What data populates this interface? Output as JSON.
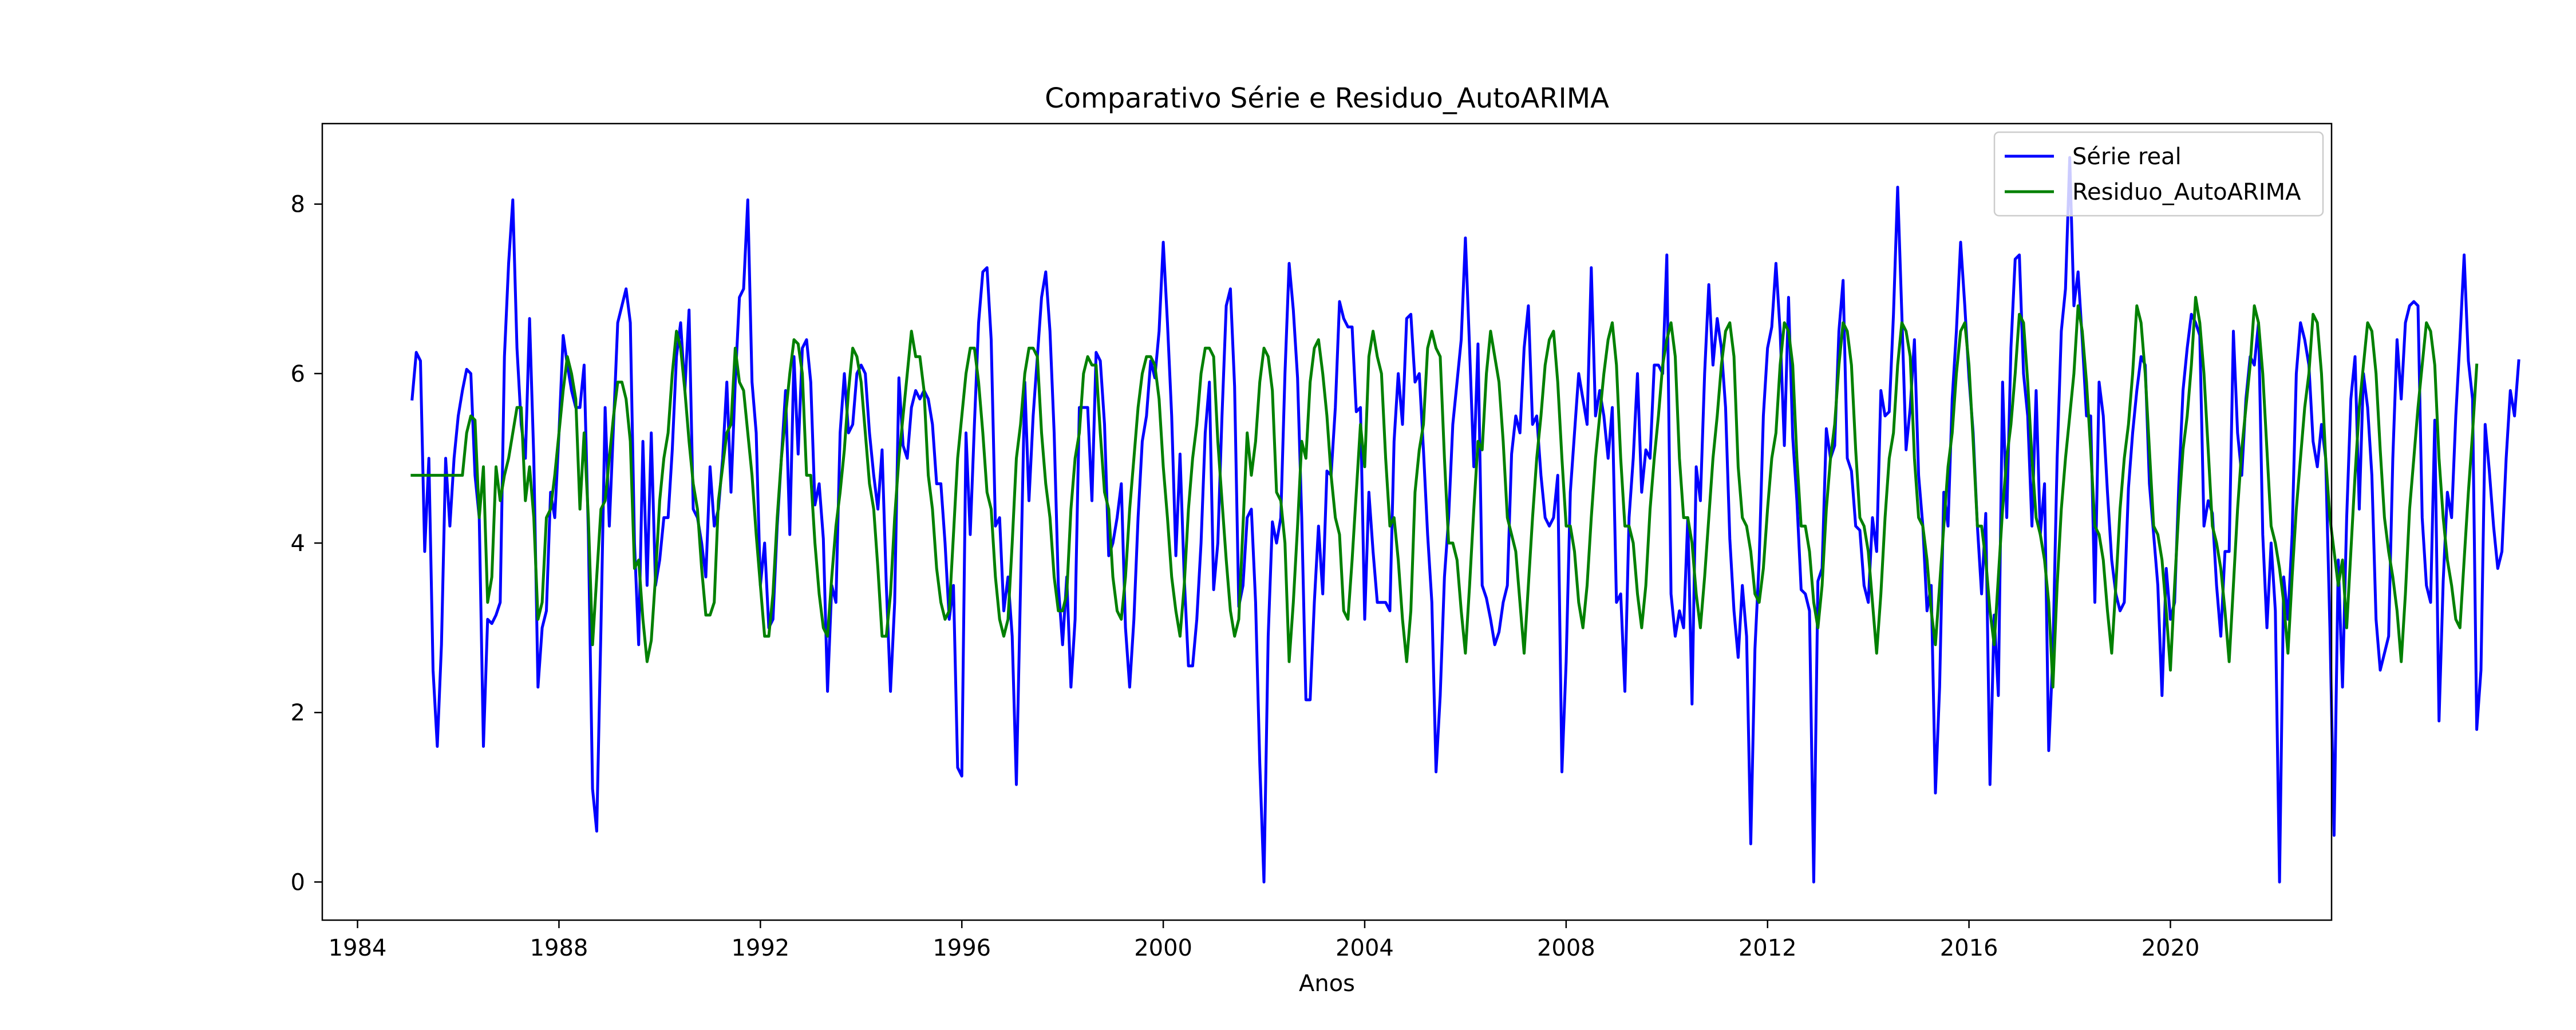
{
  "chart_data": {
    "type": "line",
    "title": "Comparativo Série e Residuo_AutoARIMA",
    "xlabel": "Anos",
    "ylabel": "",
    "x_start": 1985.0833,
    "x_step": 0.0833333,
    "xlim": [
      1983.3,
      2023.2
    ],
    "ylim": [
      -0.45,
      8.95
    ],
    "xticks": [
      1984,
      1988,
      1992,
      1996,
      2000,
      2004,
      2008,
      2012,
      2016,
      2020
    ],
    "yticks": [
      0,
      2,
      4,
      6,
      8
    ],
    "grid": false,
    "legend_position": "top-right",
    "series": [
      {
        "name": "Série real",
        "color": "#0000ff",
        "values": [
          5.7,
          6.25,
          6.15,
          3.9,
          5.0,
          2.5,
          1.6,
          2.8,
          5.0,
          4.2,
          5.0,
          5.5,
          5.8,
          6.05,
          6.0,
          4.8,
          4.3,
          1.6,
          3.1,
          3.05,
          3.15,
          3.3,
          6.2,
          7.3,
          8.05,
          6.3,
          5.4,
          5.0,
          6.65,
          5.0,
          2.3,
          3.0,
          3.2,
          4.6,
          4.3,
          5.3,
          6.45,
          6.1,
          5.8,
          5.6,
          5.6,
          6.1,
          4.1,
          1.1,
          0.6,
          3.0,
          5.6,
          4.2,
          5.4,
          6.6,
          6.8,
          7.0,
          6.6,
          4.0,
          2.8,
          5.2,
          3.5,
          5.3,
          3.5,
          3.8,
          4.3,
          4.3,
          5.1,
          6.2,
          6.6,
          5.8,
          6.75,
          4.4,
          4.3,
          4.0,
          3.6,
          4.9,
          4.2,
          4.4,
          5.0,
          5.9,
          4.6,
          5.9,
          6.9,
          7.0,
          8.05,
          5.9,
          5.3,
          3.5,
          4.0,
          3.0,
          3.1,
          4.2,
          5.0,
          5.8,
          4.1,
          6.2,
          5.05,
          6.3,
          6.4,
          5.9,
          4.45,
          4.7,
          4.05,
          2.25,
          3.5,
          3.3,
          5.3,
          6.0,
          5.3,
          5.4,
          6.0,
          6.1,
          6.0,
          5.3,
          4.8,
          4.4,
          5.1,
          3.5,
          2.25,
          3.3,
          5.95,
          5.15,
          5.0,
          5.6,
          5.8,
          5.7,
          5.8,
          5.7,
          5.4,
          4.7,
          4.7,
          4.0,
          3.1,
          3.5,
          1.35,
          1.25,
          5.3,
          4.1,
          5.4,
          6.6,
          7.2,
          7.25,
          6.4,
          4.2,
          4.3,
          3.2,
          3.6,
          2.9,
          1.15,
          3.5,
          5.9,
          4.5,
          5.5,
          6.2,
          6.9,
          7.2,
          6.5,
          5.3,
          3.5,
          2.8,
          3.6,
          2.3,
          3.1,
          5.6,
          5.6,
          5.6,
          4.5,
          6.25,
          6.15,
          5.4,
          3.85,
          4.0,
          4.3,
          4.7,
          3.0,
          2.3,
          3.1,
          4.3,
          5.2,
          5.5,
          6.15,
          5.95,
          6.5,
          7.55,
          6.6,
          5.5,
          3.85,
          5.05,
          3.6,
          2.55,
          2.55,
          3.1,
          4.0,
          5.3,
          5.9,
          3.45,
          4.0,
          5.5,
          6.8,
          7.0,
          5.85,
          3.25,
          3.5,
          4.3,
          4.4,
          3.3,
          1.4,
          0.0,
          2.9,
          4.25,
          4.0,
          4.3,
          6.0,
          7.3,
          6.75,
          5.95,
          4.3,
          2.15,
          2.15,
          3.3,
          4.2,
          3.4,
          4.85,
          4.8,
          5.6,
          6.85,
          6.65,
          6.55,
          6.55,
          5.55,
          5.6,
          3.1,
          4.6,
          3.9,
          3.3,
          3.3,
          3.3,
          3.2,
          5.2,
          6.0,
          5.4,
          6.65,
          6.7,
          5.9,
          6.0,
          5.1,
          4.1,
          3.3,
          1.3,
          2.2,
          3.6,
          4.3,
          5.4,
          5.9,
          6.4,
          7.6,
          6.3,
          4.9,
          6.35,
          3.5,
          3.35,
          3.1,
          2.8,
          2.95,
          3.3,
          3.5,
          5.05,
          5.5,
          5.3,
          6.3,
          6.8,
          5.4,
          5.5,
          4.8,
          4.3,
          4.2,
          4.3,
          4.8,
          1.3,
          2.6,
          4.6,
          5.3,
          6.0,
          5.7,
          5.4,
          7.25,
          5.5,
          5.8,
          5.5,
          5.0,
          5.6,
          3.3,
          3.4,
          2.25,
          4.3,
          5.0,
          6.0,
          4.6,
          5.1,
          5.0,
          6.1,
          6.1,
          6.0,
          7.4,
          3.4,
          2.9,
          3.2,
          3.0,
          4.3,
          2.1,
          4.9,
          4.5,
          6.0,
          7.05,
          6.1,
          6.65,
          6.3,
          5.6,
          4.05,
          3.2,
          2.65,
          3.5,
          2.9,
          0.45,
          2.75,
          3.8,
          5.5,
          6.3,
          6.55,
          7.3,
          6.5,
          5.15,
          6.9,
          5.25,
          4.5,
          3.45,
          3.4,
          3.2,
          0.0,
          3.55,
          3.7,
          5.35,
          5.0,
          5.15,
          6.5,
          7.1,
          5.0,
          4.85,
          4.2,
          4.15,
          3.5,
          3.3,
          4.3,
          3.9,
          5.8,
          5.5,
          5.55,
          6.7,
          8.2,
          6.7,
          5.1,
          5.6,
          6.4,
          4.8,
          4.2,
          3.2,
          3.5,
          1.05,
          2.3,
          4.6,
          4.2,
          5.7,
          6.5,
          7.55,
          6.8,
          5.95,
          5.3,
          4.2,
          3.4,
          4.35,
          1.15,
          3.15,
          2.2,
          5.9,
          4.3,
          6.3,
          7.35,
          7.4,
          6.0,
          5.5,
          4.2,
          5.8,
          4.1,
          4.7,
          1.55,
          2.7,
          5.0,
          6.5,
          7.0,
          8.55,
          6.8,
          7.2,
          6.4,
          5.5,
          5.5,
          3.3,
          5.9,
          5.5,
          4.6,
          3.8,
          3.4,
          3.2,
          3.3,
          4.65,
          5.3,
          5.8,
          6.2,
          6.1,
          4.7,
          4.1,
          3.5,
          2.2,
          3.7,
          3.1,
          3.3,
          4.7,
          5.8,
          6.3,
          6.7,
          6.6,
          6.45,
          4.2,
          4.5,
          4.35,
          3.5,
          2.9,
          3.9,
          3.9,
          6.5,
          5.3,
          4.8,
          5.7,
          6.2,
          6.1,
          6.6,
          4.1,
          3.0,
          4.0,
          3.2,
          0.0,
          3.6,
          3.1,
          4.1,
          6.0,
          6.6,
          6.4,
          6.1,
          5.2,
          4.9,
          5.4,
          5.0,
          3.0,
          0.55,
          3.8,
          2.3,
          4.3,
          5.7,
          6.2,
          4.4,
          6.0,
          5.6,
          4.8,
          3.1,
          2.5,
          2.7,
          2.9,
          5.0,
          6.4,
          5.7,
          6.6,
          6.8,
          6.85,
          6.8,
          4.3,
          3.5,
          3.3,
          5.45,
          1.9,
          3.55,
          4.6,
          4.3,
          5.5,
          6.4,
          7.4,
          6.15,
          5.7,
          1.8,
          2.5,
          5.4,
          4.85,
          4.2,
          3.7,
          3.9,
          5.0,
          5.8,
          5.5,
          6.15
        ]
      },
      {
        "name": "Residuo_AutoARIMA",
        "color": "#008000",
        "values": [
          4.8,
          4.8,
          4.8,
          4.8,
          4.8,
          4.8,
          4.8,
          4.8,
          4.8,
          4.8,
          4.8,
          4.8,
          4.8,
          5.3,
          5.5,
          5.45,
          4.3,
          4.9,
          3.3,
          3.6,
          4.9,
          4.5,
          4.8,
          5.0,
          5.3,
          5.6,
          5.6,
          4.5,
          4.9,
          4.3,
          3.1,
          3.3,
          4.3,
          4.4,
          4.8,
          5.3,
          5.8,
          6.2,
          6.0,
          5.7,
          4.4,
          5.3,
          4.3,
          2.8,
          3.6,
          4.4,
          4.5,
          5.0,
          5.5,
          5.9,
          5.9,
          5.7,
          5.2,
          3.7,
          3.8,
          3.1,
          2.6,
          2.85,
          3.6,
          4.5,
          5.0,
          5.3,
          6.0,
          6.5,
          6.3,
          5.8,
          5.2,
          4.7,
          4.4,
          3.7,
          3.15,
          3.15,
          3.3,
          4.5,
          4.9,
          5.3,
          5.4,
          6.3,
          5.9,
          5.8,
          5.3,
          4.8,
          4.1,
          3.5,
          2.9,
          2.9,
          3.4,
          4.3,
          5.0,
          5.5,
          6.0,
          6.4,
          6.35,
          6.0,
          4.8,
          4.8,
          4.0,
          3.4,
          3.0,
          2.9,
          3.6,
          4.2,
          4.6,
          5.1,
          5.8,
          6.3,
          6.2,
          5.9,
          5.3,
          4.7,
          4.4,
          3.7,
          2.9,
          2.9,
          3.4,
          4.3,
          5.0,
          5.5,
          6.0,
          6.5,
          6.2,
          6.2,
          5.8,
          4.8,
          4.4,
          3.7,
          3.3,
          3.1,
          3.2,
          4.1,
          5.0,
          5.5,
          6.0,
          6.3,
          6.3,
          5.9,
          5.3,
          4.6,
          4.4,
          3.6,
          3.1,
          2.9,
          3.1,
          4.0,
          5.0,
          5.4,
          6.0,
          6.3,
          6.3,
          6.2,
          5.3,
          4.7,
          4.3,
          3.6,
          3.2,
          3.2,
          3.4,
          4.4,
          5.0,
          5.3,
          6.0,
          6.2,
          6.1,
          6.1,
          5.3,
          4.6,
          4.4,
          3.6,
          3.2,
          3.1,
          3.6,
          4.4,
          5.0,
          5.6,
          6.0,
          6.2,
          6.2,
          6.1,
          5.7,
          4.9,
          4.3,
          3.6,
          3.2,
          2.9,
          3.5,
          4.4,
          5.0,
          5.4,
          6.0,
          6.3,
          6.3,
          6.2,
          5.2,
          4.5,
          3.8,
          3.2,
          2.9,
          3.1,
          4.2,
          5.3,
          4.8,
          5.2,
          5.9,
          6.3,
          6.2,
          5.8,
          4.6,
          4.5,
          4.0,
          2.6,
          3.3,
          4.2,
          5.2,
          5.0,
          5.9,
          6.3,
          6.4,
          6.0,
          5.5,
          4.8,
          4.3,
          4.1,
          3.2,
          3.1,
          3.8,
          4.6,
          5.4,
          4.9,
          6.2,
          6.5,
          6.2,
          6.0,
          5.0,
          4.2,
          4.3,
          3.8,
          3.1,
          2.6,
          3.2,
          4.6,
          5.1,
          5.4,
          6.3,
          6.5,
          6.3,
          6.2,
          5.0,
          4.0,
          4.0,
          3.8,
          3.2,
          2.7,
          3.5,
          4.4,
          5.2,
          5.1,
          6.0,
          6.5,
          6.2,
          5.9,
          5.2,
          4.3,
          4.1,
          3.9,
          3.3,
          2.7,
          3.5,
          4.3,
          5.0,
          5.5,
          6.1,
          6.4,
          6.5,
          5.9,
          5.0,
          4.2,
          4.2,
          3.9,
          3.3,
          3.0,
          3.5,
          4.3,
          5.0,
          5.5,
          6.0,
          6.4,
          6.6,
          6.1,
          5.0,
          4.2,
          4.2,
          4.0,
          3.4,
          3.0,
          3.5,
          4.4,
          5.0,
          5.5,
          6.1,
          6.4,
          6.6,
          6.2,
          5.0,
          4.3,
          4.3,
          4.0,
          3.4,
          3.0,
          3.6,
          4.3,
          5.0,
          5.5,
          6.1,
          6.5,
          6.6,
          6.2,
          4.9,
          4.3,
          4.2,
          3.9,
          3.4,
          3.3,
          3.7,
          4.4,
          5.0,
          5.3,
          6.1,
          6.6,
          6.5,
          6.1,
          5.0,
          4.2,
          4.2,
          3.9,
          3.3,
          3.0,
          3.5,
          4.4,
          5.0,
          5.4,
          6.1,
          6.6,
          6.5,
          6.1,
          5.1,
          4.3,
          4.2,
          3.9,
          3.3,
          2.7,
          3.4,
          4.3,
          5.0,
          5.3,
          6.1,
          6.6,
          6.5,
          6.2,
          5.0,
          4.3,
          4.2,
          3.8,
          3.2,
          2.8,
          3.5,
          4.2,
          4.9,
          5.3,
          6.0,
          6.5,
          6.6,
          6.1,
          5.2,
          4.2,
          4.2,
          3.8,
          3.2,
          2.8,
          3.6,
          4.4,
          5.0,
          5.4,
          6.0,
          6.7,
          6.6,
          5.9,
          5.0,
          4.3,
          4.1,
          3.8,
          3.3,
          2.3,
          3.5,
          4.4,
          5.0,
          5.5,
          6.0,
          6.8,
          6.5,
          5.9,
          5.1,
          4.2,
          4.1,
          3.8,
          3.2,
          2.7,
          3.5,
          4.4,
          5.0,
          5.4,
          6.0,
          6.8,
          6.6,
          6.0,
          5.1,
          4.2,
          4.1,
          3.8,
          3.2,
          2.5,
          3.5,
          4.4,
          5.1,
          5.5,
          6.1,
          6.9,
          6.6,
          6.0,
          5.1,
          4.2,
          4.0,
          3.7,
          3.2,
          2.6,
          3.5,
          4.4,
          5.1,
          5.6,
          6.1,
          6.8,
          6.6,
          6.0,
          5.1,
          4.2,
          4.0,
          3.7,
          3.3,
          2.7,
          3.6,
          4.4,
          5.0,
          5.6,
          6.0,
          6.7,
          6.6,
          6.0,
          5.0,
          4.3,
          3.9,
          3.5,
          3.8,
          3.0,
          3.9,
          4.8,
          5.6,
          6.1,
          6.6,
          6.5,
          6.0,
          5.1,
          4.3,
          3.9,
          3.6,
          3.2,
          2.6,
          3.4,
          4.4,
          5.0,
          5.6,
          6.1,
          6.6,
          6.5,
          6.1,
          5.0,
          4.3,
          3.8,
          3.5,
          3.1,
          3.0,
          3.8,
          4.6,
          5.3,
          6.1
        ]
      }
    ]
  }
}
